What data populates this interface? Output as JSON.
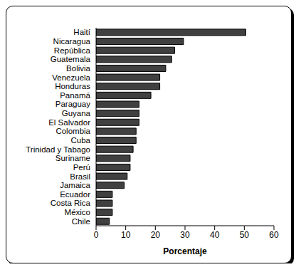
{
  "chart_data": {
    "type": "bar",
    "orientation": "horizontal",
    "x_label": "Porcentaje",
    "categories": [
      "Haití",
      "Nicaragua",
      "República",
      "Guatemala",
      "Bolivia",
      "Venezuela",
      "Honduras",
      "Panamá",
      "Paraguay",
      "Guyana",
      "El Salvador",
      "Colombia",
      "Cuba",
      "Trinidad y Tabago",
      "Suriname",
      "Perú",
      "Brasil",
      "Jamaica",
      "Ecuador",
      "Costa Rica",
      "México",
      "Chile"
    ],
    "values": [
      50.5,
      29.5,
      26.5,
      25.5,
      23.5,
      21.5,
      21.5,
      18.5,
      14.5,
      14.5,
      14.5,
      13.5,
      13.5,
      12.5,
      11.5,
      11.5,
      10.5,
      9.5,
      5.5,
      5.5,
      5.5,
      4.5
    ],
    "color": "#404040",
    "xlim": [
      0,
      60
    ],
    "xticks": [
      0,
      10,
      20,
      30,
      40,
      50,
      60
    ],
    "grid": false
  }
}
